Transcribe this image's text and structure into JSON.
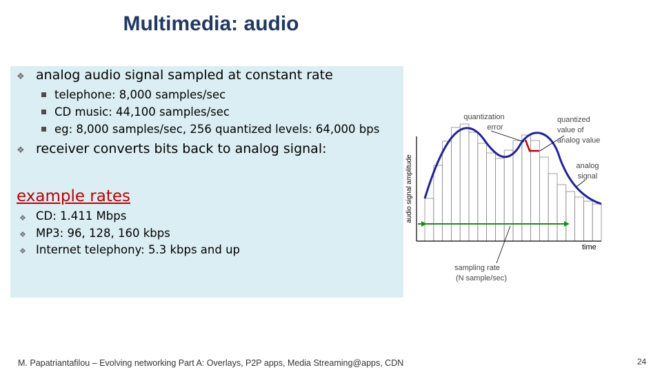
{
  "title": "Multimedia: audio",
  "bullets": {
    "main1": "analog audio signal sampled at constant rate",
    "subs": [
      "telephone: 8,000 samples/sec",
      "CD music: 44,100 samples/sec",
      "eg: 8,000 samples/sec, 256 quantized levels:  64,000 bps"
    ],
    "main2": "receiver converts bits back to analog signal:"
  },
  "example_rates": {
    "heading": "example rates",
    "items": [
      "CD: 1.411 Mbps",
      "MP3: 96, 128, 160 kbps",
      "Internet telephony: 5.3 kbps and up"
    ]
  },
  "diagram": {
    "y_axis_label": "audio signal amplitude",
    "x_axis_label": "time",
    "label_quant_error_1": "quantization",
    "label_quant_error_2": "error",
    "label_quantized_1": "quantized",
    "label_quantized_2": "value of",
    "label_quantized_3": "analog value",
    "label_signal_1": "analog",
    "label_signal_2": "signal",
    "label_sampling_1": "sampling rate",
    "label_sampling_2": "(N sample/sec)",
    "colors": {
      "signal": "#1f1fa8",
      "rate_line": "#1a8c1a",
      "error": "#c00000",
      "bars": "#888888"
    }
  },
  "footer": {
    "text": "M. Papatriantafilou –  Evolving networking Part A: Overlays, P2P apps, Media Streaming@apps, CDN",
    "page": "24"
  }
}
